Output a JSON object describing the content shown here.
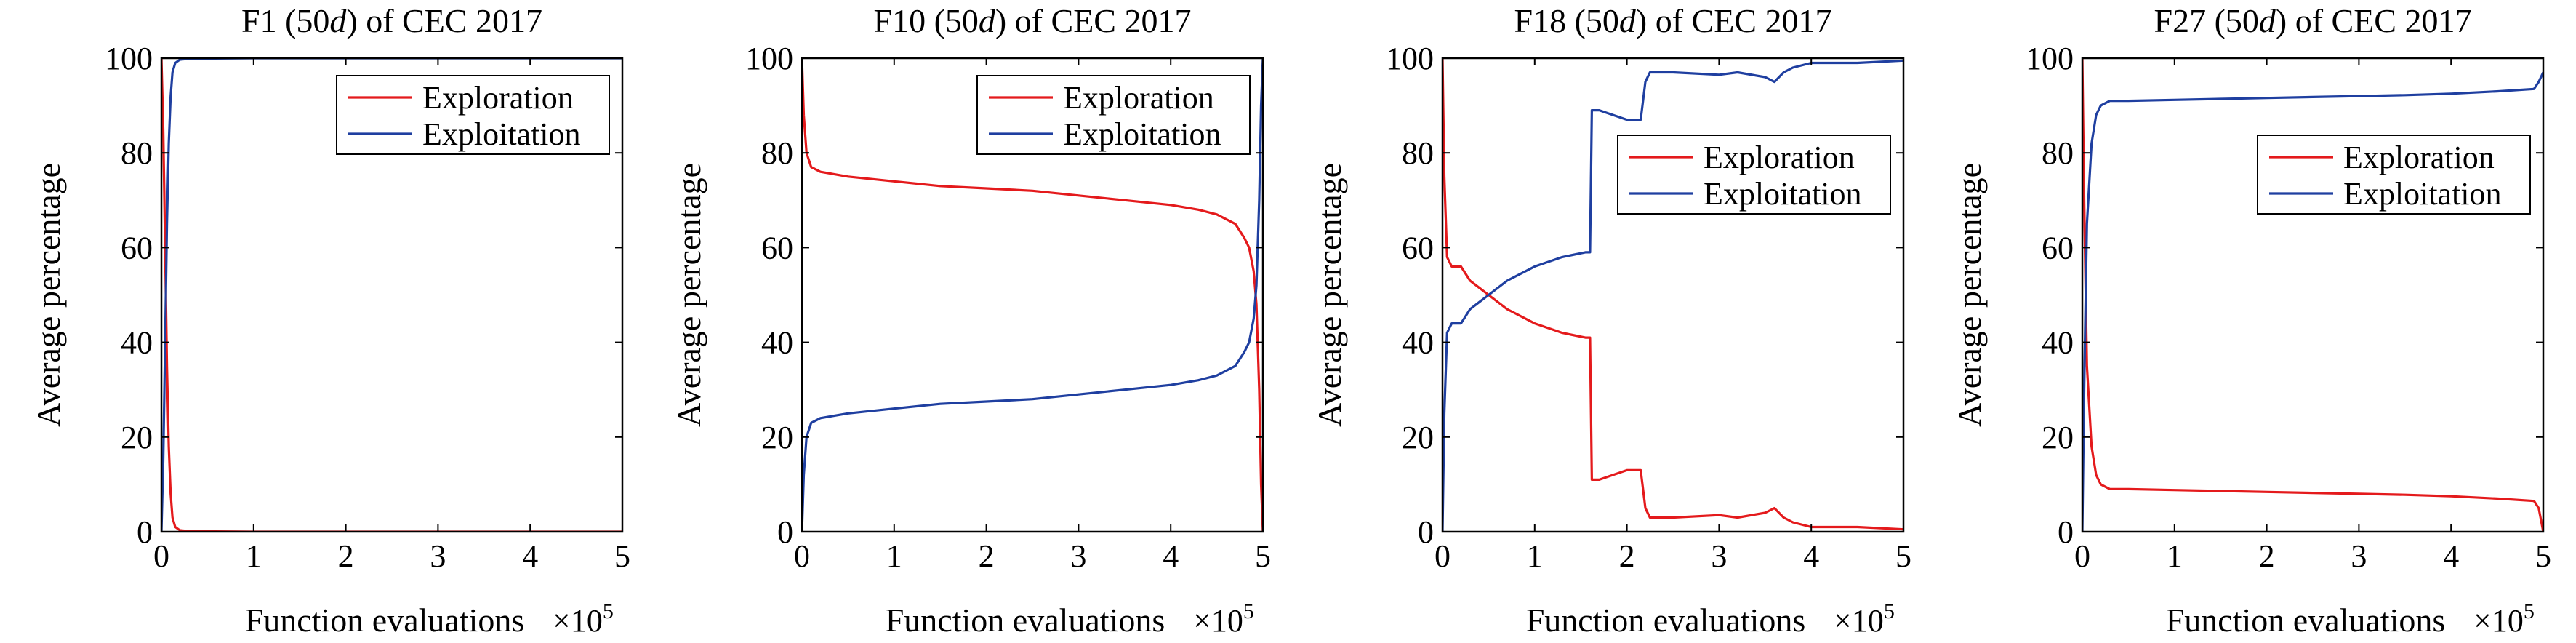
{
  "figure": {
    "panels": [
      {
        "title_prefix": "F1 (50",
        "title_italic": "d",
        "title_suffix": ") of CEC 2017"
      },
      {
        "title_prefix": "F10 (50",
        "title_italic": "d",
        "title_suffix": ") of CEC 2017"
      },
      {
        "title_prefix": "F18 (50",
        "title_italic": "d",
        "title_suffix": ") of CEC 2017"
      },
      {
        "title_prefix": "F27 (50",
        "title_italic": "d",
        "title_suffix": ") of CEC 2017"
      }
    ],
    "xlabel": "Function evaluations",
    "ylabel": "Average percentage",
    "x_multiplier_base": "×10",
    "x_multiplier_exp": "5"
  },
  "chart_data": [
    {
      "type": "line",
      "title": "F1 (50d) of CEC 2017",
      "xlabel": "Function evaluations",
      "x_scale_note": "×10^5",
      "ylabel": "Average percentage",
      "xlim": [
        0,
        5
      ],
      "ylim": [
        0,
        100
      ],
      "xticks": [
        0,
        1,
        2,
        3,
        4,
        5
      ],
      "yticks": [
        0,
        20,
        40,
        60,
        80,
        100
      ],
      "grid": false,
      "legend_position": "top-right",
      "colors": {
        "Exploration": "#e41a1c",
        "Exploitation": "#1f3fa0"
      },
      "series": [
        {
          "name": "Exploration",
          "x": [
            0,
            0.02,
            0.04,
            0.06,
            0.08,
            0.1,
            0.12,
            0.15,
            0.2,
            0.3,
            1,
            2,
            3,
            4,
            5
          ],
          "y": [
            100,
            85,
            60,
            35,
            18,
            8,
            3,
            1,
            0.3,
            0.1,
            0,
            0,
            0,
            0,
            0
          ]
        },
        {
          "name": "Exploitation",
          "x": [
            0,
            0.02,
            0.04,
            0.06,
            0.08,
            0.1,
            0.12,
            0.15,
            0.2,
            0.3,
            1,
            2,
            3,
            4,
            5
          ],
          "y": [
            0,
            15,
            40,
            65,
            82,
            92,
            97,
            99,
            99.7,
            99.9,
            100,
            100,
            100,
            100,
            100
          ]
        }
      ]
    },
    {
      "type": "line",
      "title": "F10 (50d) of CEC 2017",
      "xlabel": "Function evaluations",
      "x_scale_note": "×10^5",
      "ylabel": "Average percentage",
      "xlim": [
        0,
        5
      ],
      "ylim": [
        0,
        100
      ],
      "xticks": [
        0,
        1,
        2,
        3,
        4,
        5
      ],
      "yticks": [
        0,
        20,
        40,
        60,
        80,
        100
      ],
      "grid": false,
      "legend_position": "top-right",
      "colors": {
        "Exploration": "#e41a1c",
        "Exploitation": "#1f3fa0"
      },
      "series": [
        {
          "name": "Exploration",
          "x": [
            0,
            0.02,
            0.05,
            0.1,
            0.2,
            0.5,
            1,
            1.5,
            2,
            2.5,
            3,
            3.5,
            4,
            4.3,
            4.5,
            4.7,
            4.8,
            4.85,
            4.9,
            4.93,
            4.96,
            4.98,
            5
          ],
          "y": [
            100,
            88,
            80,
            77,
            76,
            75,
            74,
            73,
            72.5,
            72,
            71,
            70,
            69,
            68,
            67,
            65,
            62,
            60,
            55,
            48,
            30,
            10,
            0
          ]
        },
        {
          "name": "Exploitation",
          "x": [
            0,
            0.02,
            0.05,
            0.1,
            0.2,
            0.5,
            1,
            1.5,
            2,
            2.5,
            3,
            3.5,
            4,
            4.3,
            4.5,
            4.7,
            4.8,
            4.85,
            4.9,
            4.93,
            4.96,
            4.98,
            5
          ],
          "y": [
            0,
            12,
            20,
            23,
            24,
            25,
            26,
            27,
            27.5,
            28,
            29,
            30,
            31,
            32,
            33,
            35,
            38,
            40,
            45,
            52,
            70,
            90,
            100
          ]
        }
      ]
    },
    {
      "type": "line",
      "title": "F18 (50d) of CEC 2017",
      "xlabel": "Function evaluations",
      "x_scale_note": "×10^5",
      "ylabel": "Average percentage",
      "xlim": [
        0,
        5
      ],
      "ylim": [
        0,
        100
      ],
      "xticks": [
        0,
        1,
        2,
        3,
        4,
        5
      ],
      "yticks": [
        0,
        20,
        40,
        60,
        80,
        100
      ],
      "grid": false,
      "legend_position": "top-right",
      "colors": {
        "Exploration": "#e41a1c",
        "Exploitation": "#1f3fa0"
      },
      "series": [
        {
          "name": "Exploration",
          "x": [
            0,
            0.02,
            0.05,
            0.1,
            0.2,
            0.3,
            0.5,
            0.7,
            1,
            1.3,
            1.55,
            1.6,
            1.62,
            1.7,
            2,
            2.15,
            2.2,
            2.25,
            2.5,
            3,
            3.2,
            3.5,
            3.6,
            3.7,
            3.8,
            4,
            4.5,
            5
          ],
          "y": [
            100,
            75,
            58,
            56,
            56,
            53,
            50,
            47,
            44,
            42,
            41,
            41,
            11,
            11,
            13,
            13,
            5,
            3,
            3,
            3.5,
            3,
            4,
            5,
            3,
            2,
            1,
            1,
            0.5
          ]
        },
        {
          "name": "Exploitation",
          "x": [
            0,
            0.02,
            0.05,
            0.1,
            0.2,
            0.3,
            0.5,
            0.7,
            1,
            1.3,
            1.55,
            1.6,
            1.62,
            1.7,
            2,
            2.15,
            2.2,
            2.25,
            2.5,
            3,
            3.2,
            3.5,
            3.6,
            3.7,
            3.8,
            4,
            4.5,
            5
          ],
          "y": [
            0,
            25,
            42,
            44,
            44,
            47,
            50,
            53,
            56,
            58,
            59,
            59,
            89,
            89,
            87,
            87,
            95,
            97,
            97,
            96.5,
            97,
            96,
            95,
            97,
            98,
            99,
            99,
            99.5
          ]
        }
      ]
    },
    {
      "type": "line",
      "title": "F27 (50d) of CEC 2017",
      "xlabel": "Function evaluations",
      "x_scale_note": "×10^5",
      "ylabel": "Average percentage",
      "xlim": [
        0,
        5
      ],
      "ylim": [
        0,
        100
      ],
      "xticks": [
        0,
        1,
        2,
        3,
        4,
        5
      ],
      "yticks": [
        0,
        20,
        40,
        60,
        80,
        100
      ],
      "grid": false,
      "legend_position": "right",
      "colors": {
        "Exploration": "#e41a1c",
        "Exploitation": "#1f3fa0"
      },
      "series": [
        {
          "name": "Exploration",
          "x": [
            0,
            0.02,
            0.05,
            0.1,
            0.15,
            0.2,
            0.3,
            0.5,
            1,
            1.5,
            2,
            2.5,
            3,
            3.5,
            4,
            4.5,
            4.9,
            4.95,
            5
          ],
          "y": [
            100,
            70,
            35,
            18,
            12,
            10,
            9,
            9,
            8.8,
            8.6,
            8.4,
            8.2,
            8,
            7.8,
            7.5,
            7,
            6.5,
            5,
            0
          ]
        },
        {
          "name": "Exploitation",
          "x": [
            0,
            0.02,
            0.05,
            0.1,
            0.15,
            0.2,
            0.3,
            0.5,
            1,
            1.5,
            2,
            2.5,
            3,
            3.5,
            4,
            4.5,
            4.9,
            4.95,
            5
          ],
          "y": [
            0,
            30,
            65,
            82,
            88,
            90,
            91,
            91,
            91.2,
            91.4,
            91.6,
            91.8,
            92,
            92.2,
            92.5,
            93,
            93.5,
            95,
            97
          ]
        }
      ]
    }
  ]
}
